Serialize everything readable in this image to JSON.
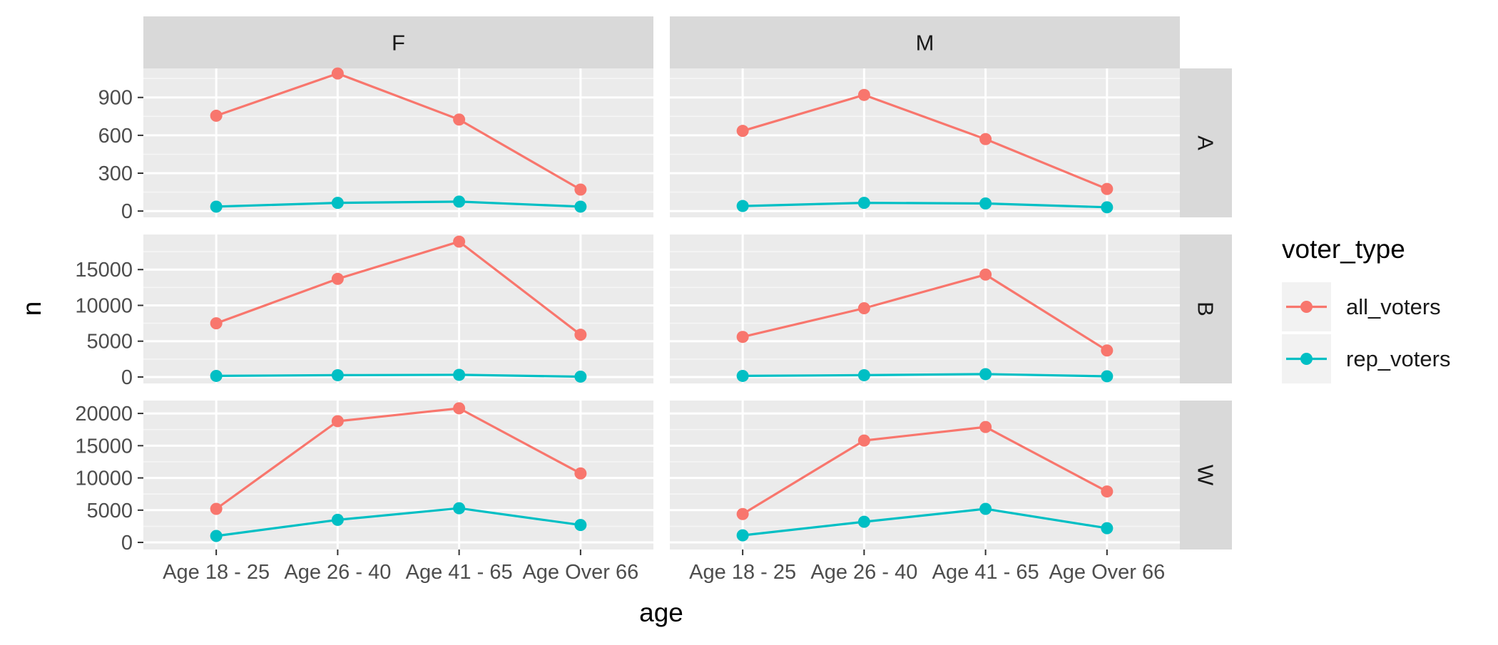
{
  "chart_data": {
    "type": "line",
    "xlabel": "age",
    "ylabel": "n",
    "categories": [
      "Age 18 - 25",
      "Age 26 - 40",
      "Age 41 - 65",
      "Age Over 66"
    ],
    "facet_columns": [
      "F",
      "M"
    ],
    "facet_rows": [
      {
        "label": "A",
        "ylim": [
          -50,
          1130
        ],
        "ticks": [
          0,
          300,
          600,
          900
        ]
      },
      {
        "label": "B",
        "ylim": [
          -900,
          19900
        ],
        "ticks": [
          0,
          5000,
          10000,
          15000
        ]
      },
      {
        "label": "W",
        "ylim": [
          -1100,
          22000
        ],
        "ticks": [
          0,
          5000,
          10000,
          15000,
          20000
        ]
      }
    ],
    "legend": {
      "title": "voter_type",
      "position": "right",
      "entries": [
        "all_voters",
        "rep_voters"
      ]
    },
    "series_colors": {
      "all_voters": "#F8766D",
      "rep_voters": "#00BFC4"
    },
    "panels": [
      {
        "row": "A",
        "col": "F",
        "series": [
          {
            "name": "all_voters",
            "values": [
              755,
              1090,
              725,
              170
            ]
          },
          {
            "name": "rep_voters",
            "values": [
              35,
              65,
              75,
              35
            ]
          }
        ]
      },
      {
        "row": "A",
        "col": "M",
        "series": [
          {
            "name": "all_voters",
            "values": [
              635,
              920,
              570,
              175
            ]
          },
          {
            "name": "rep_voters",
            "values": [
              40,
              65,
              60,
              30
            ]
          }
        ]
      },
      {
        "row": "B",
        "col": "F",
        "series": [
          {
            "name": "all_voters",
            "values": [
              7500,
              13700,
              18900,
              5900
            ]
          },
          {
            "name": "rep_voters",
            "values": [
              150,
              250,
              300,
              50
            ]
          }
        ]
      },
      {
        "row": "B",
        "col": "M",
        "series": [
          {
            "name": "all_voters",
            "values": [
              5600,
              9600,
              14300,
              3700
            ]
          },
          {
            "name": "rep_voters",
            "values": [
              150,
              250,
              400,
              100
            ]
          }
        ]
      },
      {
        "row": "W",
        "col": "F",
        "series": [
          {
            "name": "all_voters",
            "values": [
              5200,
              18800,
              20800,
              10700
            ]
          },
          {
            "name": "rep_voters",
            "values": [
              1000,
              3500,
              5300,
              2700
            ]
          }
        ]
      },
      {
        "row": "W",
        "col": "M",
        "series": [
          {
            "name": "all_voters",
            "values": [
              4400,
              15800,
              17900,
              7900
            ]
          },
          {
            "name": "rep_voters",
            "values": [
              1100,
              3200,
              5200,
              2200
            ]
          }
        ]
      }
    ]
  }
}
